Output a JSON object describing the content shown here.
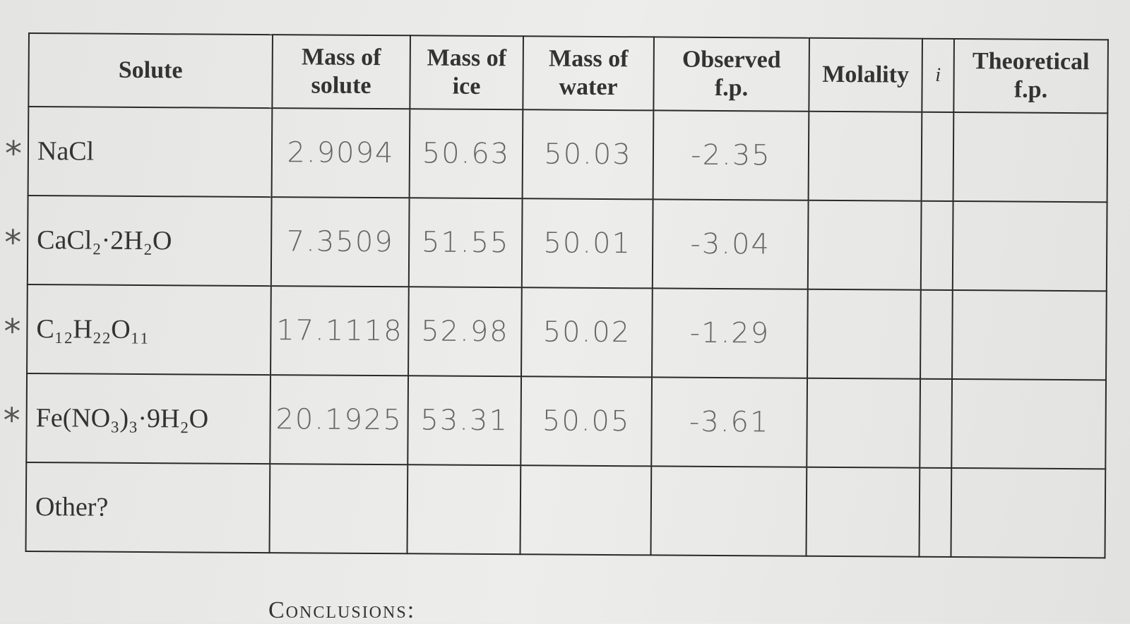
{
  "table": {
    "headers": [
      [
        "Solute"
      ],
      [
        "Mass of",
        "solute"
      ],
      [
        "Mass of",
        "ice"
      ],
      [
        "Mass of",
        "water"
      ],
      [
        "Observed",
        "f.p."
      ],
      [
        "Molality"
      ],
      [
        "i"
      ],
      [
        "Theoretical",
        "f.p."
      ]
    ],
    "rows": [
      {
        "mark": "*",
        "solute": "NaCl",
        "values": [
          "2.9094",
          "50.63",
          "50.03",
          "-2.35"
        ]
      },
      {
        "mark": "*",
        "solute": "CaCl₂·2H₂O",
        "values": [
          "7.3509",
          "51.55",
          "50.01",
          "-3.04"
        ]
      },
      {
        "mark": "*",
        "solute": "C₁₂H₂₂O₁₁",
        "values": [
          "17.1118",
          "52.98",
          "50.02",
          "-1.29"
        ]
      },
      {
        "mark": "*",
        "solute": "Fe(NO₃)₃·9H₂O",
        "values": [
          "20.1925",
          "53.31",
          "50.05",
          "-3.61"
        ]
      },
      {
        "solute": "Other?"
      }
    ]
  },
  "footer": "Conclusions:"
}
